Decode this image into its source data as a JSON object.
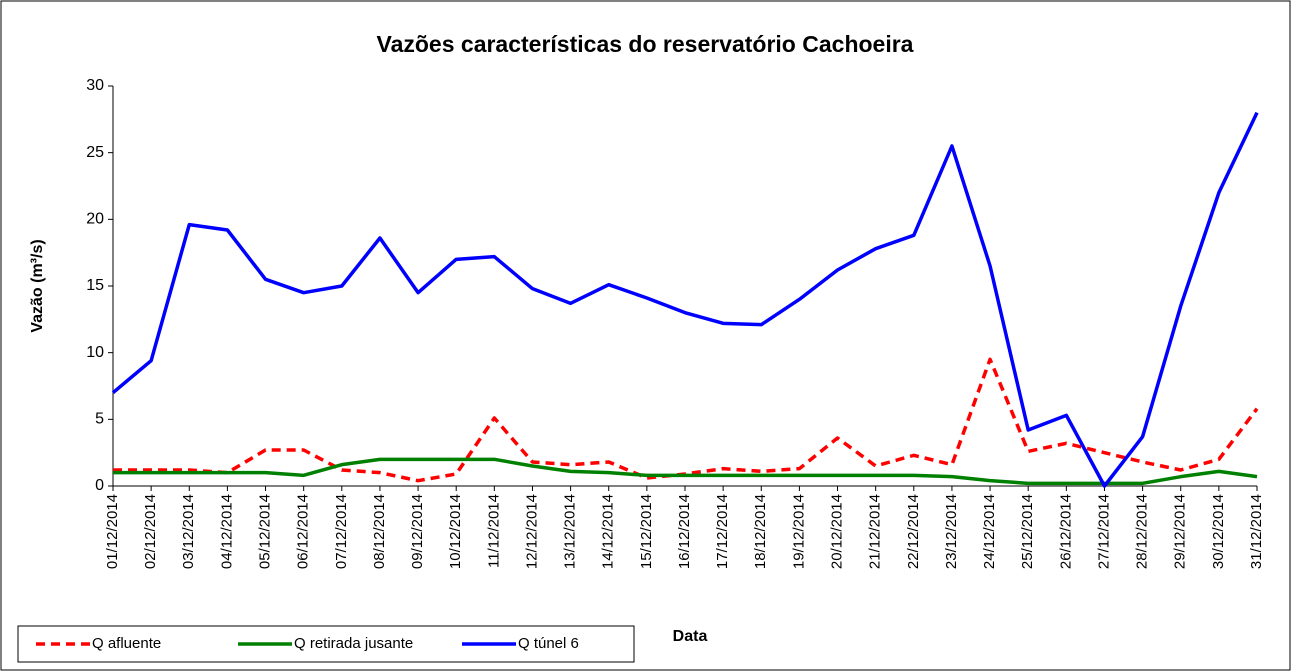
{
  "chart_data": {
    "type": "line",
    "title": "Vazões características do reservatório Cachoeira",
    "xlabel": "Data",
    "ylabel": "Vazão (m³/s)",
    "categories": [
      "01/12/2014",
      "02/12/2014",
      "03/12/2014",
      "04/12/2014",
      "05/12/2014",
      "06/12/2014",
      "07/12/2014",
      "08/12/2014",
      "09/12/2014",
      "10/12/2014",
      "11/12/2014",
      "12/12/2014",
      "13/12/2014",
      "14/12/2014",
      "15/12/2014",
      "16/12/2014",
      "17/12/2014",
      "18/12/2014",
      "19/12/2014",
      "20/12/2014",
      "21/12/2014",
      "22/12/2014",
      "23/12/2014",
      "24/12/2014",
      "25/12/2014",
      "26/12/2014",
      "27/12/2014",
      "28/12/2014",
      "29/12/2014",
      "30/12/2014",
      "31/12/2014"
    ],
    "series": [
      {
        "name": "Q afluente",
        "color": "#ff0000",
        "dashed": true,
        "values": [
          1.2,
          1.2,
          1.2,
          1.0,
          2.7,
          2.7,
          1.2,
          1.0,
          0.4,
          0.9,
          5.1,
          1.8,
          1.6,
          1.8,
          0.6,
          0.9,
          1.3,
          1.1,
          1.3,
          3.6,
          1.5,
          2.3,
          1.6,
          9.5,
          2.6,
          3.2,
          2.5,
          1.8,
          1.2,
          2.0,
          5.8
        ]
      },
      {
        "name": "Q retirada jusante",
        "color": "#008000",
        "dashed": false,
        "values": [
          1.0,
          1.0,
          1.0,
          1.0,
          1.0,
          0.8,
          1.6,
          2.0,
          2.0,
          2.0,
          2.0,
          1.5,
          1.1,
          1.0,
          0.8,
          0.8,
          0.8,
          0.8,
          0.8,
          0.8,
          0.8,
          0.8,
          0.7,
          0.4,
          0.2,
          0.2,
          0.2,
          0.2,
          0.7,
          1.1,
          0.7
        ]
      },
      {
        "name": "Q túnel 6",
        "color": "#0000ff",
        "dashed": false,
        "values": [
          7.0,
          9.4,
          19.6,
          19.2,
          15.5,
          14.5,
          15.0,
          18.6,
          14.5,
          17.0,
          17.2,
          14.8,
          13.7,
          15.1,
          14.1,
          13.0,
          12.2,
          12.1,
          14.0,
          16.2,
          17.8,
          18.8,
          25.5,
          16.5,
          4.2,
          5.3,
          0,
          3.7,
          13.5,
          22.0,
          28.0
        ]
      }
    ],
    "ylim": [
      0,
      30
    ],
    "yticks": [
      0,
      5,
      10,
      15,
      20,
      25,
      30
    ],
    "grid": false,
    "legend": "bottom-left"
  }
}
